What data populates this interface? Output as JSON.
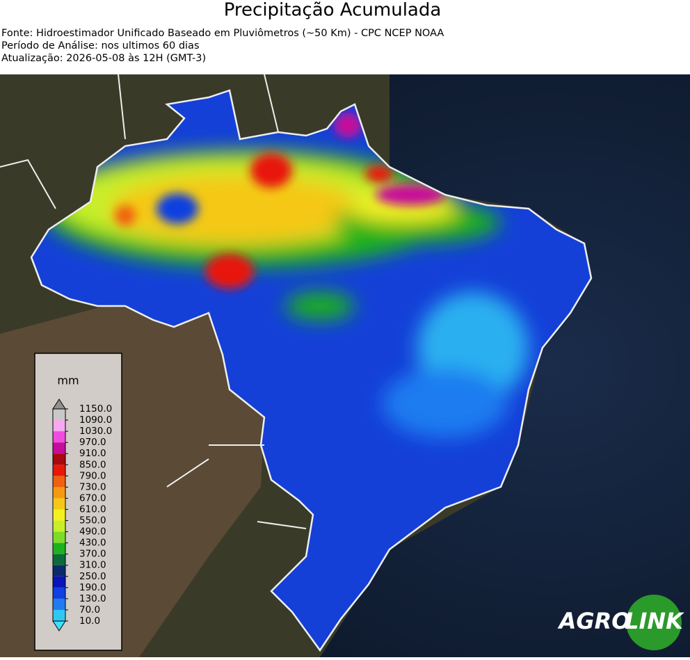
{
  "header": {
    "title": "Precipitação Acumulada",
    "lines": [
      "Fonte: Hidroestimador Unificado Baseado em Pluviômetros (~50 Km) - CPC NCEP NOAA",
      "Período de Análise: nos ultimos 60 dias",
      "Atualização: 2026-05-08 às 12H (GMT-3)"
    ]
  },
  "legend": {
    "unit": "mm",
    "ticks": [
      {
        "value": 10,
        "label": "10.0"
      },
      {
        "value": 70,
        "label": "70.0"
      },
      {
        "value": 130,
        "label": "130.0"
      },
      {
        "value": 190,
        "label": "190.0"
      },
      {
        "value": 250,
        "label": "250.0"
      },
      {
        "value": 310,
        "label": "310.0"
      },
      {
        "value": 370,
        "label": "370.0"
      },
      {
        "value": 430,
        "label": "430.0"
      },
      {
        "value": 490,
        "label": "490.0"
      },
      {
        "value": 550,
        "label": "550.0"
      },
      {
        "value": 610,
        "label": "610.0"
      },
      {
        "value": 670,
        "label": "670.0"
      },
      {
        "value": 730,
        "label": "730.0"
      },
      {
        "value": 790,
        "label": "790.0"
      },
      {
        "value": 850,
        "label": "850.0"
      },
      {
        "value": 910,
        "label": "910.0"
      },
      {
        "value": 970,
        "label": "970.0"
      },
      {
        "value": 1030,
        "label": "1030.0"
      },
      {
        "value": 1090,
        "label": "1090.0"
      },
      {
        "value": 1150,
        "label": "1150.0"
      }
    ],
    "colors": [
      "#2fc8f5",
      "#1e7cf0",
      "#1040e0",
      "#0a14b8",
      "#0c2a6a",
      "#0c6a3a",
      "#1fb11f",
      "#7ddc2a",
      "#c8ee2a",
      "#f5f020",
      "#f5c818",
      "#f59a10",
      "#f06010",
      "#e81808",
      "#a80810",
      "#c80c9a",
      "#f04ce0",
      "#f8a8f0",
      "#c8c8c8"
    ],
    "under_color": "#40e0f8",
    "over_color": "#909090"
  },
  "logo": {
    "left": "AGRO",
    "right": "LINK"
  }
}
